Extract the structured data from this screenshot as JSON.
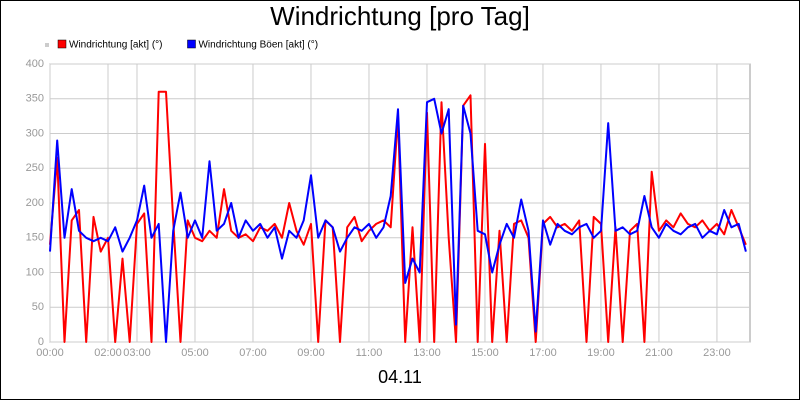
{
  "chart_data": {
    "type": "line",
    "title": "Windrichtung [pro Tag]",
    "xlabel": "04.11",
    "x": [
      0,
      0.25,
      0.5,
      0.75,
      1,
      1.25,
      1.5,
      1.75,
      2,
      2.25,
      2.5,
      2.75,
      3,
      3.25,
      3.5,
      3.75,
      4,
      4.25,
      4.5,
      4.75,
      5,
      5.25,
      5.5,
      5.75,
      6,
      6.25,
      6.5,
      6.75,
      7,
      7.25,
      7.5,
      7.75,
      8,
      8.25,
      8.5,
      8.75,
      9,
      9.25,
      9.5,
      9.75,
      10,
      10.25,
      10.5,
      10.75,
      11,
      11.25,
      11.5,
      11.75,
      12,
      12.25,
      12.5,
      12.75,
      13,
      13.25,
      13.5,
      13.75,
      14,
      14.25,
      14.5,
      14.75,
      15,
      15.25,
      15.5,
      15.75,
      16,
      16.25,
      16.5,
      16.75,
      17,
      17.25,
      17.5,
      17.75,
      18,
      18.25,
      18.5,
      18.75,
      19,
      19.25,
      19.5,
      19.75,
      20,
      20.25,
      20.5,
      20.75,
      21,
      21.25,
      21.5,
      21.75,
      22,
      22.25,
      22.5,
      22.75,
      23,
      23.25,
      23.5,
      23.75,
      24
    ],
    "series": [
      {
        "name": "Windrichtung [akt] (°)",
        "color": "#ff0000",
        "values": [
          140,
          265,
          0,
          175,
          190,
          0,
          180,
          130,
          150,
          0,
          120,
          0,
          170,
          185,
          0,
          360,
          360,
          175,
          0,
          175,
          150,
          145,
          160,
          150,
          220,
          160,
          150,
          155,
          145,
          165,
          160,
          170,
          150,
          200,
          160,
          140,
          170,
          0,
          175,
          165,
          0,
          165,
          180,
          145,
          160,
          170,
          175,
          165,
          325,
          0,
          165,
          0,
          330,
          0,
          345,
          150,
          0,
          340,
          355,
          0,
          285,
          0,
          160,
          0,
          170,
          175,
          150,
          0,
          170,
          180,
          165,
          170,
          160,
          175,
          0,
          180,
          170,
          0,
          165,
          0,
          160,
          170,
          0,
          245,
          160,
          175,
          165,
          185,
          170,
          165,
          175,
          160,
          170,
          155,
          190,
          165,
          140
        ]
      },
      {
        "name": "Windrichtung Böen [akt] (°)",
        "color": "#0000ff",
        "values": [
          130,
          290,
          150,
          220,
          160,
          150,
          145,
          150,
          145,
          165,
          130,
          150,
          175,
          225,
          150,
          170,
          0,
          160,
          215,
          150,
          175,
          150,
          260,
          160,
          170,
          200,
          150,
          175,
          160,
          170,
          150,
          165,
          120,
          160,
          150,
          175,
          240,
          150,
          175,
          165,
          130,
          150,
          165,
          160,
          170,
          150,
          165,
          210,
          335,
          85,
          120,
          100,
          345,
          350,
          300,
          335,
          25,
          340,
          300,
          160,
          155,
          100,
          140,
          170,
          150,
          205,
          160,
          15,
          175,
          140,
          170,
          160,
          155,
          165,
          170,
          150,
          160,
          315,
          160,
          165,
          155,
          160,
          210,
          165,
          150,
          170,
          160,
          155,
          165,
          170,
          150,
          160,
          155,
          190,
          165,
          170,
          130
        ]
      }
    ],
    "xlim": [
      0,
      24.14
    ],
    "xticks": [
      {
        "value": 0,
        "label": "00:00"
      },
      {
        "value": 2,
        "label": "02:00"
      },
      {
        "value": 3,
        "label": "03:00"
      },
      {
        "value": 5,
        "label": "05:00"
      },
      {
        "value": 7,
        "label": "07:00"
      },
      {
        "value": 9,
        "label": "09:00"
      },
      {
        "value": 11,
        "label": "11:00"
      },
      {
        "value": 13,
        "label": "13:00"
      },
      {
        "value": 15,
        "label": "15:00"
      },
      {
        "value": 17,
        "label": "17:00"
      },
      {
        "value": 19,
        "label": "19:00"
      },
      {
        "value": 21,
        "label": "21:00"
      },
      {
        "value": 23,
        "label": "23:00"
      }
    ],
    "ylim": [
      0,
      400
    ],
    "yticks": [
      0,
      50,
      100,
      150,
      200,
      250,
      300,
      350,
      400
    ],
    "grid": true
  }
}
